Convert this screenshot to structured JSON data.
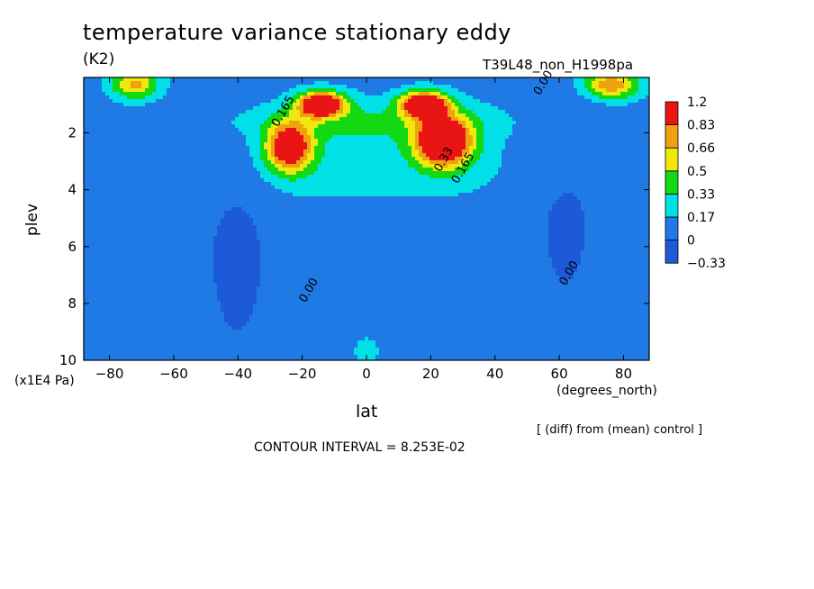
{
  "title": "temperature variance stationary eddy",
  "units": "(K2)",
  "run_label": "T39L48_non_H1998pa",
  "footer": {
    "diff_note": "[ (diff) from (mean) control ]",
    "contour_interval": "CONTOUR INTERVAL = 8.253E-02"
  },
  "colors": {
    "levels": [
      "#1d5ad8",
      "#1f7ae5",
      "#00e0e6",
      "#13d812",
      "#f0e70c",
      "#f0a112",
      "#e91414"
    ],
    "contour": "#000000"
  },
  "chart_data": {
    "type": "heatmap",
    "title": "temperature variance stationary eddy",
    "xlabel": "lat",
    "xunit": "(degrees_north)",
    "ylabel": "plev",
    "yunit": "(x1E4 Pa)",
    "xlim": [
      -88,
      88
    ],
    "ylim": [
      0.05,
      10
    ],
    "y_inverted": true,
    "x_ticks": [
      -80,
      -60,
      -40,
      -20,
      0,
      20,
      40,
      60,
      80
    ],
    "x_tick_labels": [
      "−80",
      "−60",
      "−40",
      "−20",
      "0",
      "20",
      "40",
      "60",
      "80"
    ],
    "y_ticks": [
      2,
      4,
      6,
      8,
      10
    ],
    "colorbar": {
      "levels": [
        -0.33,
        0,
        0.17,
        0.33,
        0.5,
        0.66,
        0.83,
        1.2
      ],
      "labels": [
        "1.2",
        "0.83",
        "0.66",
        "0.5",
        "0.33",
        "0.17",
        "0",
        "−0.33"
      ]
    },
    "contour_interval": 0.08253,
    "contour_labels": [
      {
        "text": "0.00",
        "lat": 56,
        "plev": 0.3
      },
      {
        "text": "0.165",
        "lat": -25,
        "plev": 1.3
      },
      {
        "text": "0.00",
        "lat": -17,
        "plev": 7.6
      },
      {
        "text": "0.00",
        "lat": 64,
        "plev": 7.0
      },
      {
        "text": "0.33",
        "lat": 25,
        "plev": 3.0
      },
      {
        "text": "0.165",
        "lat": 31,
        "plev": 3.3
      }
    ],
    "features": [
      {
        "name": "southern-subtropical-jet-max",
        "lat": -24,
        "plev": 2.5,
        "value": 0.95
      },
      {
        "name": "northern-subtropical-jet-max",
        "lat": 25,
        "plev": 2.3,
        "value": 1.2
      },
      {
        "name": "upper-south-max",
        "lat": -14,
        "plev": 1.0,
        "value": 1.2
      },
      {
        "name": "upper-north-max",
        "lat": 18,
        "plev": 1.0,
        "value": 1.2
      },
      {
        "name": "south-polar-top-max",
        "lat": -72,
        "plev": 0.3,
        "value": 0.6
      },
      {
        "name": "north-polar-top-max",
        "lat": 76,
        "plev": 0.3,
        "value": 0.7
      },
      {
        "name": "cyan-upper-band",
        "lat": 0,
        "plev": 2.8,
        "value": 0.25
      }
    ]
  }
}
